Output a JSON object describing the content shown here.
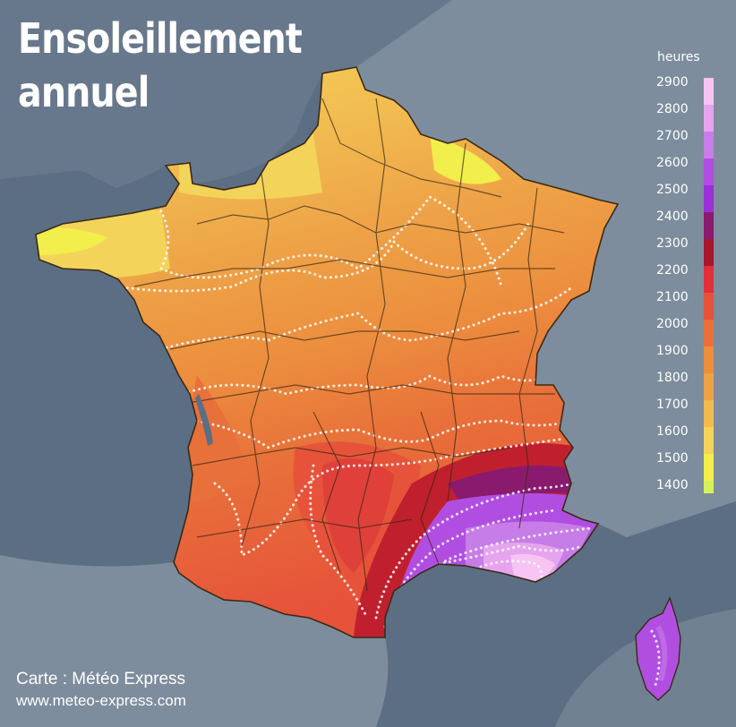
{
  "title": {
    "line1": "Ensoleillement",
    "line2": "annuel"
  },
  "legend": {
    "unit": "heures",
    "levels": [
      {
        "label": "2900",
        "color": "#f7c4f4"
      },
      {
        "label": "2800",
        "color": "#e6a4ef"
      },
      {
        "label": "2700",
        "color": "#c77de8"
      },
      {
        "label": "2600",
        "color": "#b14ee2"
      },
      {
        "label": "2500",
        "color": "#9b2fd8"
      },
      {
        "label": "2400",
        "color": "#8a1a6e"
      },
      {
        "label": "2300",
        "color": "#a8162e"
      },
      {
        "label": "2200",
        "color": "#e0303a"
      },
      {
        "label": "2100",
        "color": "#e6533a"
      },
      {
        "label": "2000",
        "color": "#e8703a"
      },
      {
        "label": "1900",
        "color": "#ec8e3e"
      },
      {
        "label": "1800",
        "color": "#eea247"
      },
      {
        "label": "1700",
        "color": "#f1bb50"
      },
      {
        "label": "1600",
        "color": "#f4d35a"
      },
      {
        "label": "1500",
        "color": "#f2ee4c"
      },
      {
        "label": "1400",
        "color": "#d6f25a"
      }
    ]
  },
  "credits": {
    "line1": "Carte : Météo Express",
    "line2": "www.meteo-express.com"
  },
  "colors": {
    "sea": "#5c6e83",
    "land_outside": "#7d8d9d",
    "border": "#3a2a16",
    "isoline": "#ffffff"
  }
}
